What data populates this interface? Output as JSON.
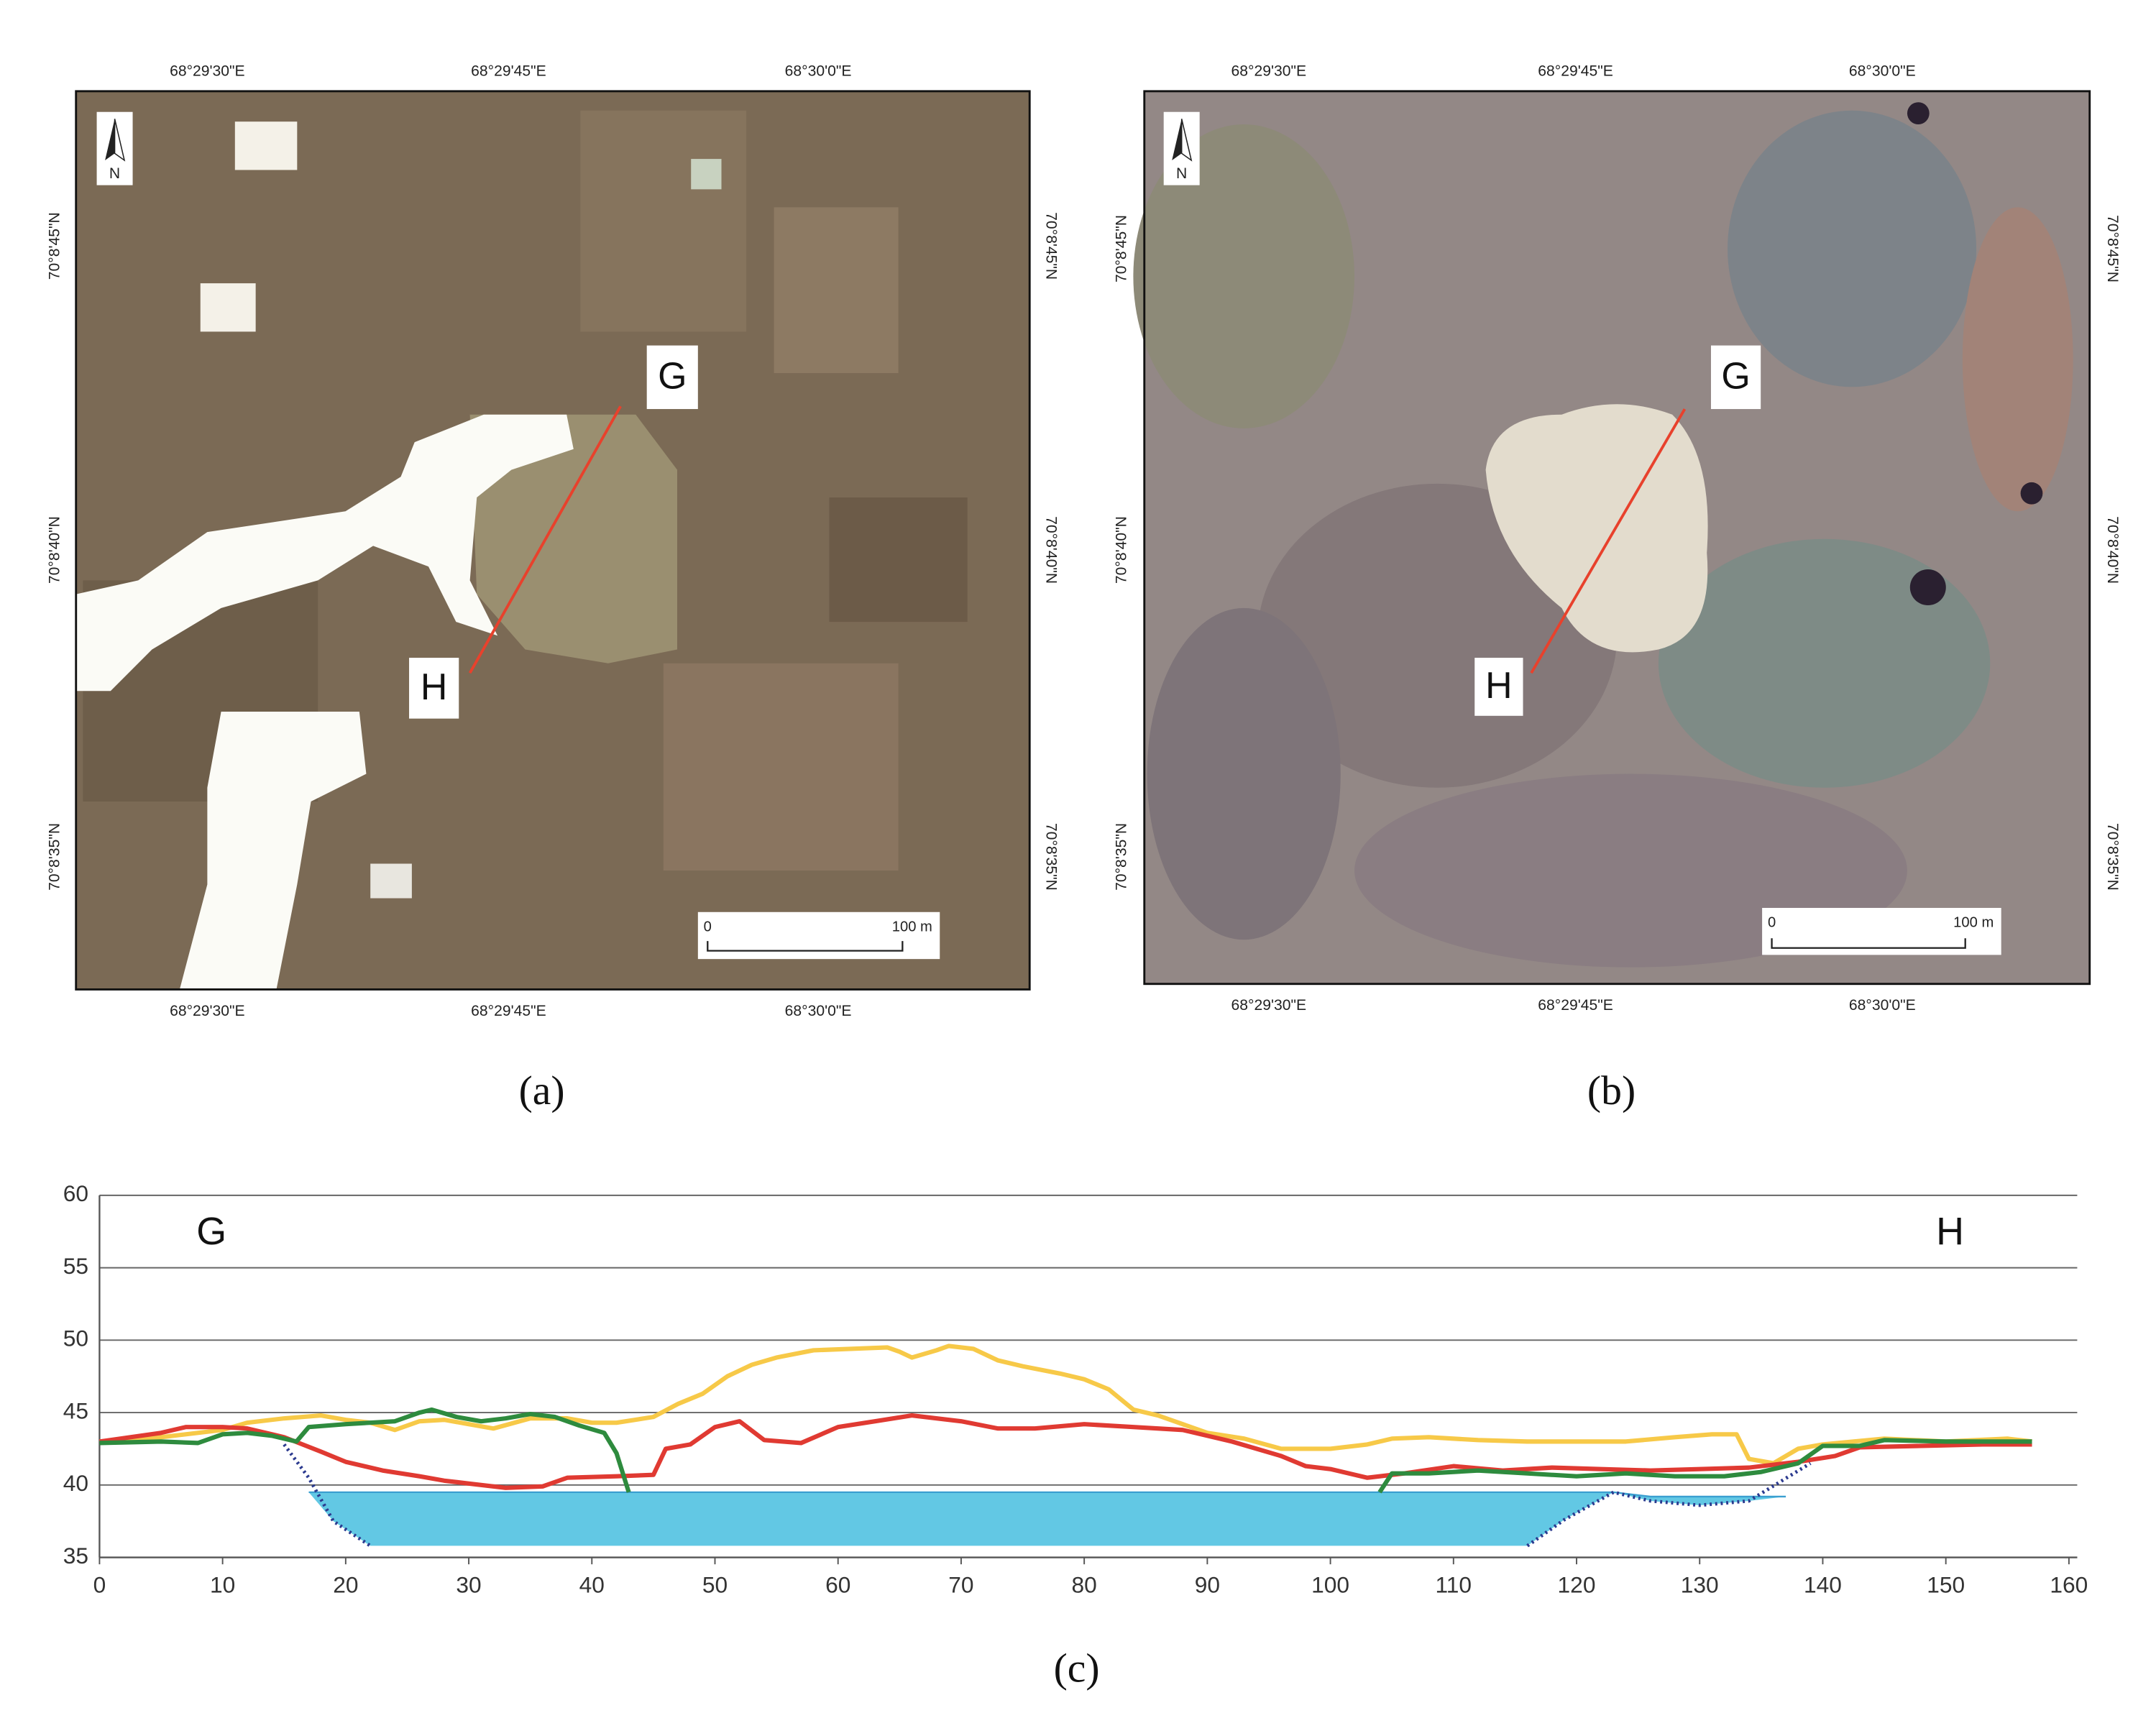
{
  "lon_labels": [
    "68°29'30\"E",
    "68°29'45\"E",
    "68°30'0\"E"
  ],
  "lat_labels": [
    "70°8'45\"N",
    "70°8'40\"N",
    "70°8'35\"N"
  ],
  "panels": [
    {
      "label": "(a)",
      "markers": [
        "G",
        "H"
      ],
      "north": "N",
      "scale": [
        "0",
        "100 m"
      ]
    },
    {
      "label": "(b)",
      "markers": [
        "G",
        "H"
      ],
      "north": "N",
      "scale": [
        "0",
        "100 m"
      ]
    }
  ],
  "chart_data": {
    "type": "line",
    "label": "(c)",
    "annotations": [
      "G",
      "H"
    ],
    "xlim": [
      0,
      160
    ],
    "xticks": [
      0,
      10,
      20,
      30,
      40,
      50,
      60,
      70,
      80,
      90,
      100,
      110,
      120,
      130,
      140,
      150,
      160
    ],
    "ylim": [
      35,
      60
    ],
    "yticks": [
      35,
      40,
      45,
      50,
      55,
      60
    ],
    "grid": true,
    "series": [
      {
        "kind": "area",
        "color": "#62c8e4",
        "x": [
          17,
          19,
          22,
          116,
          119,
          123,
          126,
          130,
          134,
          137
        ],
        "values": [
          39.5,
          39.5,
          39.5,
          39.5,
          39.5,
          39.5,
          39.2,
          39.2,
          39.2,
          39.2
        ],
        "base": [
          39.5,
          37.5,
          35.8,
          35.8,
          37.6,
          39.5,
          38.9,
          38.6,
          38.9,
          39.2
        ]
      },
      {
        "kind": "line",
        "color": "#f7c948",
        "x": [
          0,
          5,
          10,
          12,
          15,
          18,
          20,
          22,
          24,
          26,
          28,
          30,
          32,
          35,
          38,
          40,
          42,
          45,
          47,
          49,
          51,
          53,
          55,
          58,
          61,
          64,
          65,
          66,
          68,
          69,
          71,
          73,
          75,
          78,
          80,
          82,
          84,
          86,
          88,
          90,
          93,
          96,
          100,
          103,
          105,
          108,
          112,
          116,
          120,
          124,
          128,
          131,
          133,
          134,
          136,
          138,
          140,
          145,
          150,
          155,
          157
        ],
        "values": [
          43,
          43.3,
          43.8,
          44.3,
          44.6,
          44.8,
          44.5,
          44.3,
          43.8,
          44.4,
          44.5,
          44.2,
          43.9,
          44.6,
          44.6,
          44.3,
          44.3,
          44.7,
          45.6,
          46.3,
          47.5,
          48.3,
          48.8,
          49.3,
          49.4,
          49.5,
          49.2,
          48.8,
          49.3,
          49.6,
          49.4,
          48.6,
          48.2,
          47.7,
          47.3,
          46.6,
          45.2,
          44.8,
          44.2,
          43.6,
          43.2,
          42.5,
          42.5,
          42.8,
          43.2,
          43.3,
          43.1,
          43,
          43,
          43,
          43.3,
          43.5,
          43.5,
          41.8,
          41.5,
          42.5,
          42.8,
          43.2,
          43,
          43.2,
          43
        ]
      },
      {
        "kind": "line",
        "color": "#e03a32",
        "x": [
          0,
          5,
          7,
          10,
          12,
          15,
          18,
          20,
          23,
          26,
          28,
          30,
          33,
          36,
          38,
          42,
          45,
          46,
          48,
          50,
          52,
          54,
          57,
          60,
          63,
          66,
          70,
          73,
          76,
          80,
          84,
          88,
          92,
          96,
          98,
          100,
          103,
          106,
          110,
          114,
          118,
          122,
          126,
          130,
          134,
          138,
          141,
          143,
          148,
          153,
          157
        ],
        "values": [
          43,
          43.6,
          44,
          44,
          43.9,
          43.3,
          42.3,
          41.6,
          41,
          40.6,
          40.3,
          40.1,
          39.8,
          39.9,
          40.5,
          40.6,
          40.7,
          42.5,
          42.8,
          44,
          44.4,
          43.1,
          42.9,
          44,
          44.4,
          44.8,
          44.4,
          43.9,
          43.9,
          44.2,
          44,
          43.8,
          43,
          42,
          41.3,
          41.1,
          40.5,
          40.8,
          41.3,
          41,
          41.2,
          41.1,
          41,
          41.1,
          41.2,
          41.6,
          42,
          42.6,
          42.7,
          42.8,
          42.8
        ]
      },
      {
        "kind": "line",
        "color": "#2e8b3e",
        "x": [
          0,
          5,
          8,
          10,
          12,
          14,
          16,
          17,
          20,
          24,
          26,
          27,
          29,
          31,
          33,
          35,
          37,
          39,
          41,
          42,
          43,
          70,
          104,
          105,
          108,
          112,
          116,
          120,
          124,
          128,
          132,
          135,
          138,
          140,
          143,
          145,
          150,
          157
        ],
        "values": [
          42.9,
          43,
          42.9,
          43.5,
          43.6,
          43.4,
          43,
          44,
          44.2,
          44.4,
          45,
          45.2,
          44.7,
          44.4,
          44.6,
          44.9,
          44.7,
          44.1,
          43.6,
          42.2,
          39.5,
          null,
          39.5,
          40.8,
          40.8,
          41,
          40.8,
          40.6,
          40.8,
          40.6,
          40.6,
          40.9,
          41.5,
          42.7,
          42.7,
          43.1,
          43,
          43
        ]
      },
      {
        "kind": "line",
        "dash": "dotted",
        "color": "#2b3a8f",
        "x": [
          15,
          17,
          19,
          22
        ],
        "values": [
          42.8,
          40.5,
          37.5,
          35.8
        ]
      },
      {
        "kind": "line",
        "dash": "dotted",
        "color": "#2b3a8f",
        "x": [
          116,
          119,
          123,
          126,
          130,
          134,
          139
        ],
        "values": [
          35.8,
          37.6,
          39.5,
          38.9,
          38.6,
          38.9,
          41.5
        ]
      }
    ]
  }
}
